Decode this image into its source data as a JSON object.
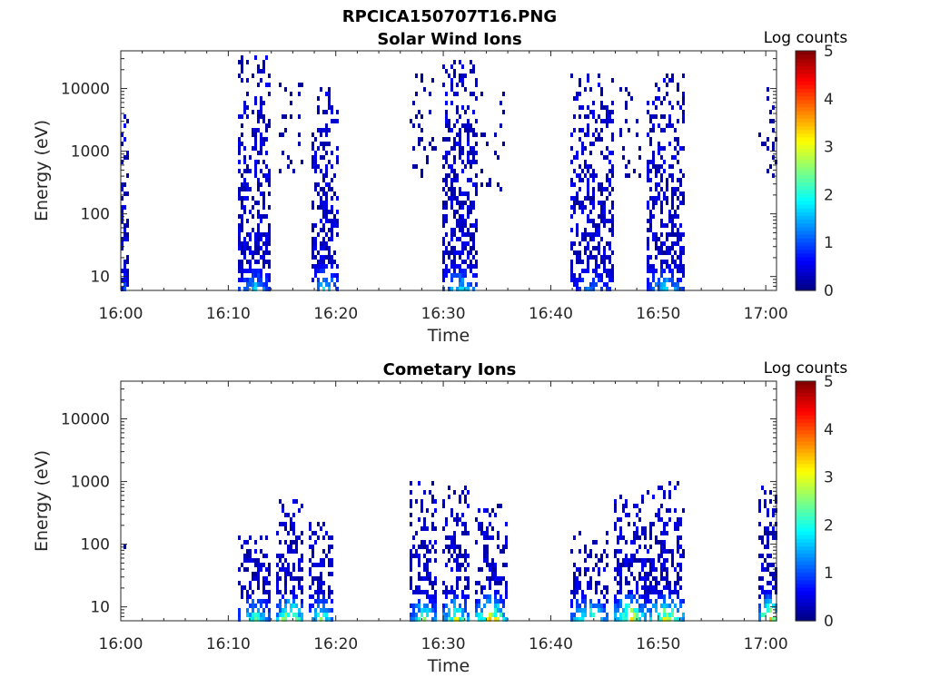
{
  "figure": {
    "filename_title": "RPCICA150707T16.PNG"
  },
  "colormap": {
    "name": "jet",
    "stops": [
      "#00007f",
      "#0000ff",
      "#007fff",
      "#00ffff",
      "#7fff7f",
      "#ffff00",
      "#ff7f00",
      "#ff0000",
      "#7f0000"
    ]
  },
  "chart_data": [
    {
      "type": "heatmap",
      "title": "Solar Wind Ions",
      "xlabel": "Time",
      "ylabel": "Energy (eV)",
      "x_unit": "time of day",
      "x_range": [
        "16:00",
        "17:01"
      ],
      "x_tick_labels": [
        "16:00",
        "16:10",
        "16:20",
        "16:30",
        "16:40",
        "16:50",
        "17:00"
      ],
      "y_scale": "log",
      "y_range": [
        6,
        40000
      ],
      "y_tick_labels": [
        "10",
        "100",
        "1000",
        "10000"
      ],
      "y_tick_values": [
        10,
        100,
        1000,
        10000
      ],
      "colorbar": {
        "label": "Log counts",
        "range": [
          0,
          5
        ],
        "tick_labels": [
          "0",
          "1",
          "2",
          "3",
          "4",
          "5"
        ]
      },
      "bursts": [
        {
          "t_start": "16:00",
          "t_end": "16:00.5",
          "e_low": 6,
          "e_high": 15000,
          "peak_log_counts": 1.0,
          "density": 0.55
        },
        {
          "t_start": "16:11",
          "t_end": "16:13.5",
          "e_low": 6,
          "e_high": 30000,
          "peak_log_counts": 1.8,
          "density": 0.6
        },
        {
          "t_start": "16:14.5",
          "t_end": "16:16.5",
          "e_low": 600,
          "e_high": 12000,
          "peak_log_counts": 0.3,
          "density": 0.2
        },
        {
          "t_start": "16:17.8",
          "t_end": "16:19.8",
          "e_low": 6,
          "e_high": 9000,
          "peak_log_counts": 2.1,
          "density": 0.6
        },
        {
          "t_start": "16:27",
          "t_end": "16:29",
          "e_low": 500,
          "e_high": 15000,
          "peak_log_counts": 0.3,
          "density": 0.2
        },
        {
          "t_start": "16:30",
          "t_end": "16:32.8",
          "e_low": 6,
          "e_high": 25000,
          "peak_log_counts": 2.0,
          "density": 0.6
        },
        {
          "t_start": "16:33.5",
          "t_end": "16:35.5",
          "e_low": 300,
          "e_high": 9000,
          "peak_log_counts": 0.3,
          "density": 0.25
        },
        {
          "t_start": "16:42",
          "t_end": "16:45.5",
          "e_low": 6,
          "e_high": 15000,
          "peak_log_counts": 1.3,
          "density": 0.55
        },
        {
          "t_start": "16:46.5",
          "t_end": "16:48",
          "e_low": 500,
          "e_high": 9000,
          "peak_log_counts": 0.3,
          "density": 0.2
        },
        {
          "t_start": "16:49",
          "t_end": "16:52",
          "e_low": 6,
          "e_high": 15000,
          "peak_log_counts": 1.9,
          "density": 0.6
        },
        {
          "t_start": "16:59.5",
          "t_end": "17:01",
          "e_low": 500,
          "e_high": 9000,
          "peak_log_counts": 0.3,
          "density": 0.3
        }
      ]
    },
    {
      "type": "heatmap",
      "title": "Cometary Ions",
      "xlabel": "Time",
      "ylabel": "Energy (eV)",
      "x_unit": "time of day",
      "x_range": [
        "16:00",
        "17:01"
      ],
      "x_tick_labels": [
        "16:00",
        "16:10",
        "16:20",
        "16:30",
        "16:40",
        "16:50",
        "17:00"
      ],
      "y_scale": "log",
      "y_range": [
        6,
        40000
      ],
      "y_tick_labels": [
        "10",
        "100",
        "1000",
        "10000"
      ],
      "y_tick_values": [
        10,
        100,
        1000,
        10000
      ],
      "colorbar": {
        "label": "Log counts",
        "range": [
          0,
          5
        ],
        "tick_labels": [
          "0",
          "1",
          "2",
          "3",
          "4",
          "5"
        ]
      },
      "bursts": [
        {
          "t_start": "16:00",
          "t_end": "16:00.5",
          "e_low": 80,
          "e_high": 250,
          "peak_log_counts": 0.5,
          "density": 0.3
        },
        {
          "t_start": "16:11",
          "t_end": "16:13.5",
          "e_low": 6,
          "e_high": 150,
          "peak_log_counts": 2.5,
          "density": 0.6
        },
        {
          "t_start": "16:14.5",
          "t_end": "16:16.5",
          "e_low": 6,
          "e_high": 500,
          "peak_log_counts": 3.6,
          "density": 0.6
        },
        {
          "t_start": "16:17.5",
          "t_end": "16:19.5",
          "e_low": 6,
          "e_high": 200,
          "peak_log_counts": 2.8,
          "density": 0.6
        },
        {
          "t_start": "16:27",
          "t_end": "16:29",
          "e_low": 6,
          "e_high": 1000,
          "peak_log_counts": 2.8,
          "density": 0.6
        },
        {
          "t_start": "16:30",
          "t_end": "16:32",
          "e_low": 6,
          "e_high": 800,
          "peak_log_counts": 3.2,
          "density": 0.6
        },
        {
          "t_start": "16:33",
          "t_end": "16:35.5",
          "e_low": 6,
          "e_high": 400,
          "peak_log_counts": 3.8,
          "density": 0.6
        },
        {
          "t_start": "16:42",
          "t_end": "16:45",
          "e_low": 6,
          "e_high": 150,
          "peak_log_counts": 2.8,
          "density": 0.5
        },
        {
          "t_start": "16:46",
          "t_end": "16:48.5",
          "e_low": 6,
          "e_high": 600,
          "peak_log_counts": 3.8,
          "density": 0.6
        },
        {
          "t_start": "16:49",
          "t_end": "16:52",
          "e_low": 6,
          "e_high": 900,
          "peak_log_counts": 3.6,
          "density": 0.6
        },
        {
          "t_start": "16:59.5",
          "t_end": "17:01",
          "e_low": 6,
          "e_high": 800,
          "peak_log_counts": 4.0,
          "density": 0.6
        }
      ]
    }
  ]
}
